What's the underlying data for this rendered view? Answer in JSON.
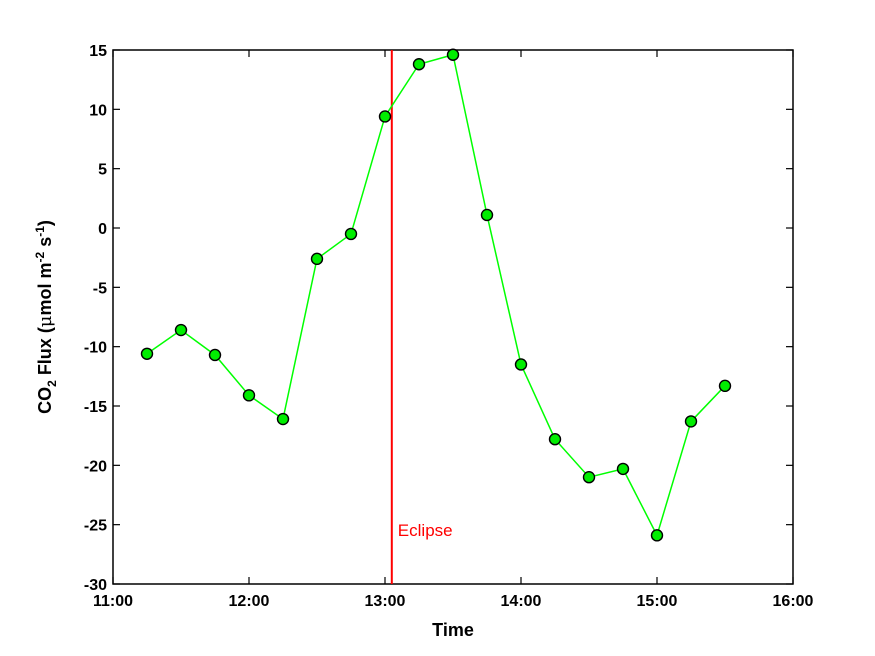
{
  "chart_data": {
    "type": "line",
    "xlabel": "Time",
    "ylabel": {
      "parts": [
        "CO",
        "2",
        " Flux (",
        "μ",
        "mol m",
        "-2",
        " s",
        "-1",
        ")"
      ]
    },
    "xlim": [
      "11:00",
      "16:00"
    ],
    "ylim": [
      -30,
      15
    ],
    "x_ticks": [
      "11:00",
      "12:00",
      "13:00",
      "14:00",
      "15:00",
      "16:00"
    ],
    "y_ticks": [
      15,
      10,
      5,
      0,
      -5,
      -10,
      -15,
      -20,
      -25,
      -30
    ],
    "series": [
      {
        "line_color": "#00ff00",
        "marker_fill": "#00ee00",
        "marker_edge": "#000000",
        "x": [
          "11:15",
          "11:30",
          "11:45",
          "12:00",
          "12:15",
          "12:30",
          "12:45",
          "13:00",
          "13:15",
          "13:30",
          "13:45",
          "14:00",
          "14:15",
          "14:30",
          "14:45",
          "15:00",
          "15:15",
          "15:30"
        ],
        "y": [
          -10.6,
          -8.6,
          -10.7,
          -14.1,
          -16.1,
          -2.6,
          -0.5,
          9.4,
          13.8,
          14.6,
          1.1,
          -11.5,
          -17.8,
          -21.0,
          -20.3,
          -25.9,
          -16.3,
          -13.3
        ]
      }
    ],
    "annotations": [
      {
        "type": "vline",
        "x": "13:03",
        "color": "#ff0000",
        "label": "Eclipse"
      }
    ],
    "grid": false
  }
}
